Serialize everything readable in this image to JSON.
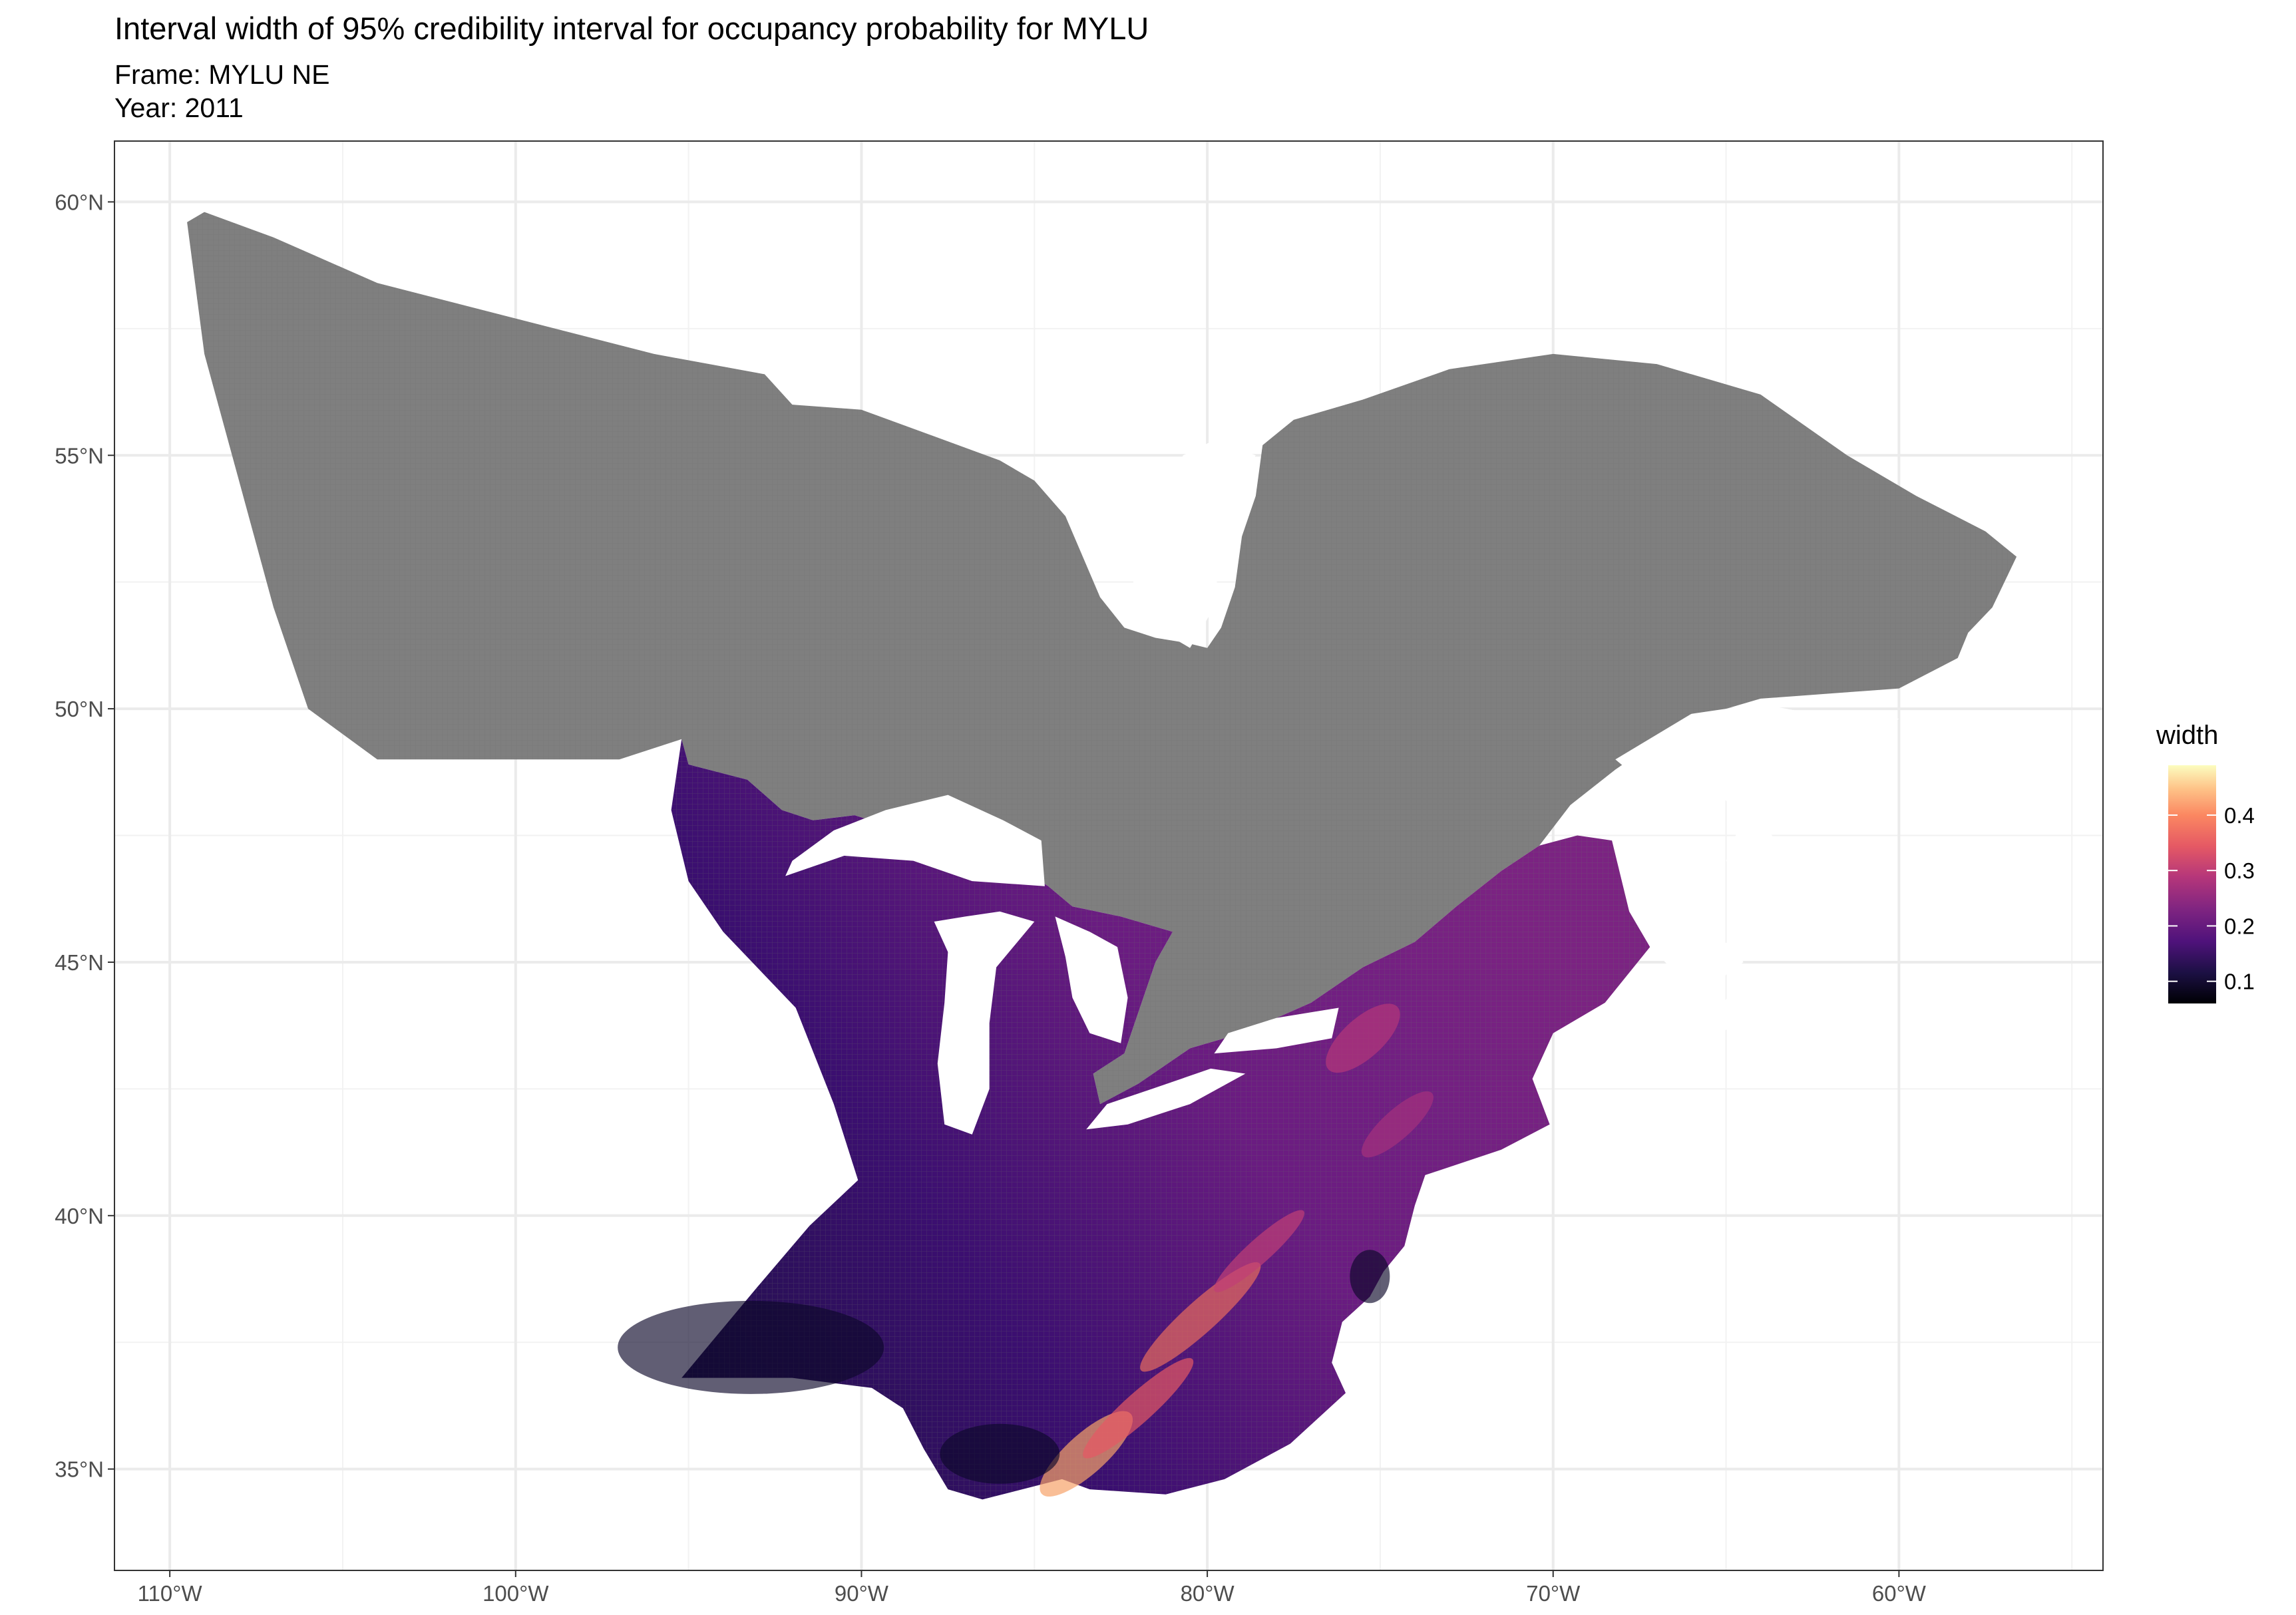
{
  "title": "Interval width of 95% credibility interval for occupancy probability for MYLU",
  "subtitle_frame": "Frame: MYLU NE",
  "subtitle_year": "Year: 2011",
  "chart_data": {
    "type": "heatmap",
    "x_ticks": [
      {
        "value": -110,
        "label": "110°W"
      },
      {
        "value": -100,
        "label": "100°W"
      },
      {
        "value": -90,
        "label": "90°W"
      },
      {
        "value": -80,
        "label": "80°W"
      },
      {
        "value": -70,
        "label": "70°W"
      },
      {
        "value": -60,
        "label": "60°W"
      }
    ],
    "y_ticks": [
      {
        "value": 35,
        "label": "35°N"
      },
      {
        "value": 40,
        "label": "40°N"
      },
      {
        "value": 45,
        "label": "45°N"
      },
      {
        "value": 50,
        "label": "50°N"
      },
      {
        "value": 55,
        "label": "55°N"
      },
      {
        "value": 60,
        "label": "60°N"
      }
    ],
    "xlim": [
      -111.6,
      -54.1
    ],
    "ylim": [
      33.0,
      61.2
    ],
    "grid": true,
    "legend": {
      "title": "width",
      "position": "right",
      "palette": "magma",
      "range": [
        0.06,
        0.49
      ],
      "breaks": [
        {
          "value": 0.1,
          "label": "0.1"
        },
        {
          "value": 0.2,
          "label": "0.2"
        },
        {
          "value": 0.3,
          "label": "0.3"
        },
        {
          "value": 0.4,
          "label": "0.4"
        }
      ]
    },
    "na_color": "#7f7f7f",
    "regions": [
      {
        "name": "no data",
        "fill": "#7f7f7f",
        "outline": [
          [
            -109.0,
            59.8
          ],
          [
            -107.0,
            59.3
          ],
          [
            -104.0,
            58.4
          ],
          [
            -100.0,
            57.7
          ],
          [
            -96.0,
            57.0
          ],
          [
            -92.8,
            56.6
          ],
          [
            -92.0,
            56.0
          ],
          [
            -90.0,
            55.9
          ],
          [
            -88.0,
            55.4
          ],
          [
            -86.0,
            54.9
          ],
          [
            -85.0,
            54.5
          ],
          [
            -84.1,
            53.8
          ],
          [
            -83.6,
            53.0
          ],
          [
            -83.1,
            52.2
          ],
          [
            -82.4,
            51.6
          ],
          [
            -81.5,
            51.4
          ],
          [
            -80.6,
            51.3
          ],
          [
            -80.0,
            51.2
          ],
          [
            -79.6,
            51.6
          ],
          [
            -79.2,
            52.4
          ],
          [
            -79.0,
            53.4
          ],
          [
            -78.6,
            54.2
          ],
          [
            -78.4,
            55.2
          ],
          [
            -77.5,
            55.7
          ],
          [
            -75.5,
            56.1
          ],
          [
            -73.0,
            56.7
          ],
          [
            -70.0,
            57.0
          ],
          [
            -67.0,
            56.8
          ],
          [
            -64.0,
            56.2
          ],
          [
            -61.5,
            55.0
          ],
          [
            -59.5,
            54.2
          ],
          [
            -57.5,
            53.5
          ],
          [
            -56.6,
            53.0
          ],
          [
            -57.3,
            52.0
          ],
          [
            -58.0,
            51.5
          ],
          [
            -58.3,
            51.0
          ],
          [
            -60.0,
            50.4
          ],
          [
            -62.0,
            50.3
          ],
          [
            -64.0,
            50.2
          ],
          [
            -65.0,
            50.0
          ],
          [
            -66.5,
            49.6
          ],
          [
            -68.2,
            48.8
          ],
          [
            -69.5,
            48.1
          ],
          [
            -70.4,
            47.3
          ],
          [
            -71.5,
            46.8
          ],
          [
            -72.8,
            46.1
          ],
          [
            -74.0,
            45.4
          ],
          [
            -75.5,
            44.9
          ],
          [
            -77.0,
            44.2
          ],
          [
            -79.0,
            43.6
          ],
          [
            -80.5,
            43.3
          ],
          [
            -82.0,
            42.6
          ],
          [
            -83.1,
            42.2
          ],
          [
            -83.3,
            42.8
          ],
          [
            -82.4,
            43.2
          ],
          [
            -82.0,
            44.0
          ],
          [
            -81.5,
            45.0
          ],
          [
            -81.0,
            45.6
          ],
          [
            -82.5,
            45.9
          ],
          [
            -83.9,
            46.1
          ],
          [
            -84.6,
            46.5
          ],
          [
            -85.8,
            47.0
          ],
          [
            -87.2,
            47.4
          ],
          [
            -88.8,
            47.6
          ],
          [
            -90.2,
            47.9
          ],
          [
            -91.4,
            47.8
          ],
          [
            -92.3,
            48.0
          ],
          [
            -93.3,
            48.6
          ],
          [
            -95.0,
            48.9
          ],
          [
            -95.2,
            49.4
          ],
          [
            -97.0,
            49.0
          ],
          [
            -101.0,
            49.0
          ],
          [
            -104.0,
            49.0
          ],
          [
            -106.0,
            50.0
          ],
          [
            -107.0,
            52.0
          ],
          [
            -108.0,
            54.5
          ],
          [
            -109.0,
            57.0
          ],
          [
            -109.5,
            59.6
          ]
        ]
      },
      {
        "name": "width",
        "fill": "magma-mid",
        "outline": [
          [
            -95.2,
            49.4
          ],
          [
            -95.0,
            48.9
          ],
          [
            -93.3,
            48.6
          ],
          [
            -92.3,
            48.0
          ],
          [
            -91.4,
            47.8
          ],
          [
            -90.2,
            47.9
          ],
          [
            -88.8,
            47.6
          ],
          [
            -87.2,
            47.4
          ],
          [
            -85.8,
            47.0
          ],
          [
            -84.6,
            46.5
          ],
          [
            -83.9,
            46.1
          ],
          [
            -82.5,
            45.9
          ],
          [
            -81.0,
            45.6
          ],
          [
            -81.5,
            45.0
          ],
          [
            -82.0,
            44.0
          ],
          [
            -82.4,
            43.2
          ],
          [
            -83.3,
            42.8
          ],
          [
            -83.1,
            42.2
          ],
          [
            -82.0,
            42.6
          ],
          [
            -80.5,
            43.3
          ],
          [
            -79.0,
            43.6
          ],
          [
            -77.0,
            44.2
          ],
          [
            -75.5,
            44.9
          ],
          [
            -74.0,
            45.4
          ],
          [
            -72.8,
            46.1
          ],
          [
            -71.5,
            46.8
          ],
          [
            -70.4,
            47.3
          ],
          [
            -69.3,
            47.5
          ],
          [
            -68.3,
            47.4
          ],
          [
            -67.8,
            46.0
          ],
          [
            -67.2,
            45.3
          ],
          [
            -68.5,
            44.2
          ],
          [
            -70.0,
            43.6
          ],
          [
            -70.6,
            42.7
          ],
          [
            -70.1,
            41.8
          ],
          [
            -71.5,
            41.3
          ],
          [
            -73.7,
            40.8
          ],
          [
            -74.0,
            40.2
          ],
          [
            -74.3,
            39.4
          ],
          [
            -74.9,
            38.9
          ],
          [
            -75.3,
            38.4
          ],
          [
            -76.1,
            37.9
          ],
          [
            -76.4,
            37.1
          ],
          [
            -76.0,
            36.5
          ],
          [
            -77.6,
            35.5
          ],
          [
            -79.5,
            34.8
          ],
          [
            -81.2,
            34.5
          ],
          [
            -83.4,
            34.6
          ],
          [
            -84.2,
            34.8
          ],
          [
            -86.5,
            34.4
          ],
          [
            -87.5,
            34.6
          ],
          [
            -88.2,
            35.4
          ],
          [
            -88.8,
            36.2
          ],
          [
            -89.7,
            36.6
          ],
          [
            -92.0,
            36.8
          ],
          [
            -95.2,
            36.8
          ],
          [
            -93.0,
            38.6
          ],
          [
            -91.5,
            39.8
          ],
          [
            -90.1,
            40.7
          ],
          [
            -90.8,
            42.2
          ],
          [
            -91.9,
            44.1
          ],
          [
            -94.0,
            45.6
          ],
          [
            -95.0,
            46.6
          ],
          [
            -95.5,
            48.0
          ]
        ]
      }
    ],
    "lakes": [
      {
        "name": "Lake Superior",
        "outline": [
          [
            -92.2,
            46.7
          ],
          [
            -90.5,
            47.1
          ],
          [
            -88.5,
            47.0
          ],
          [
            -86.8,
            46.6
          ],
          [
            -84.7,
            46.5
          ],
          [
            -84.8,
            47.4
          ],
          [
            -85.9,
            47.8
          ],
          [
            -87.5,
            48.3
          ],
          [
            -89.3,
            48.0
          ],
          [
            -90.8,
            47.6
          ],
          [
            -92.0,
            47.0
          ]
        ]
      },
      {
        "name": "Lake Michigan",
        "outline": [
          [
            -87.9,
            45.8
          ],
          [
            -87.5,
            45.2
          ],
          [
            -87.6,
            44.2
          ],
          [
            -87.8,
            43.0
          ],
          [
            -87.6,
            41.8
          ],
          [
            -86.8,
            41.6
          ],
          [
            -86.3,
            42.5
          ],
          [
            -86.3,
            43.8
          ],
          [
            -86.1,
            44.9
          ],
          [
            -85.0,
            45.8
          ],
          [
            -86.0,
            46.0
          ],
          [
            -87.0,
            45.9
          ]
        ]
      },
      {
        "name": "Lake Huron",
        "outline": [
          [
            -84.4,
            45.9
          ],
          [
            -83.4,
            45.6
          ],
          [
            -82.6,
            45.3
          ],
          [
            -82.3,
            44.3
          ],
          [
            -82.5,
            43.4
          ],
          [
            -83.4,
            43.6
          ],
          [
            -83.9,
            44.3
          ],
          [
            -84.1,
            45.1
          ]
        ]
      },
      {
        "name": "Lake Erie",
        "outline": [
          [
            -83.5,
            41.7
          ],
          [
            -82.3,
            41.8
          ],
          [
            -80.5,
            42.2
          ],
          [
            -78.9,
            42.8
          ],
          [
            -79.9,
            42.9
          ],
          [
            -81.6,
            42.5
          ],
          [
            -82.9,
            42.2
          ]
        ]
      },
      {
        "name": "Lake Ontario",
        "outline": [
          [
            -79.8,
            43.2
          ],
          [
            -78.0,
            43.3
          ],
          [
            -76.4,
            43.5
          ],
          [
            -76.2,
            44.1
          ],
          [
            -78.0,
            43.9
          ],
          [
            -79.4,
            43.6
          ]
        ]
      },
      {
        "name": "Hudson Bay tip",
        "outline": [
          [
            -82.0,
            51.8
          ],
          [
            -80.5,
            51.2
          ],
          [
            -79.8,
            52.0
          ],
          [
            -79.6,
            53.3
          ],
          [
            -79.2,
            54.4
          ],
          [
            -78.6,
            55.0
          ],
          [
            -79.8,
            55.3
          ],
          [
            -80.7,
            55.0
          ],
          [
            -81.5,
            53.9
          ],
          [
            -82.2,
            52.8
          ]
        ]
      },
      {
        "name": "Gulf of St. Lawrence",
        "outline": [
          [
            -68.2,
            49.0
          ],
          [
            -66.0,
            49.9
          ],
          [
            -64.0,
            50.1
          ],
          [
            -62.5,
            49.9
          ],
          [
            -60.0,
            49.8
          ],
          [
            -61.8,
            49.0
          ],
          [
            -63.5,
            48.4
          ],
          [
            -64.5,
            47.9
          ],
          [
            -65.0,
            47.0
          ],
          [
            -64.0,
            46.2
          ],
          [
            -63.0,
            45.9
          ],
          [
            -61.8,
            45.7
          ],
          [
            -62.2,
            46.4
          ],
          [
            -63.2,
            47.2
          ],
          [
            -64.3,
            47.9
          ],
          [
            -66.0,
            48.6
          ],
          [
            -67.5,
            48.6
          ]
        ]
      },
      {
        "name": "Bay of Fundy",
        "outline": [
          [
            -66.9,
            45.1
          ],
          [
            -66.0,
            45.3
          ],
          [
            -64.8,
            45.4
          ],
          [
            -64.5,
            45.0
          ],
          [
            -65.5,
            44.5
          ],
          [
            -66.2,
            44.6
          ]
        ]
      },
      {
        "name": "Bay of Fundy lower",
        "outline": [
          [
            -66.4,
            44.3
          ],
          [
            -65.4,
            44.0
          ],
          [
            -64.5,
            44.6
          ],
          [
            -63.6,
            44.4
          ],
          [
            -64.8,
            43.7
          ],
          [
            -65.9,
            43.5
          ],
          [
            -66.5,
            43.9
          ]
        ]
      }
    ]
  }
}
